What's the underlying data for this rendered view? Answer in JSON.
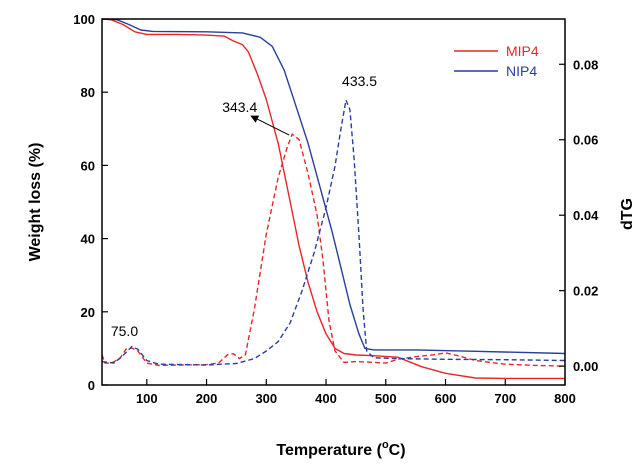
{
  "chart_data": {
    "type": "line",
    "title": "",
    "xlabel": "Temperature (",
    "xlabel_sup": "o",
    "xlabel_suffix": "C)",
    "ylabel": "Weight loss (%)",
    "y2label": "dTG",
    "xlim": [
      25,
      800
    ],
    "ylim": [
      0,
      100
    ],
    "y2lim": [
      -0.005,
      0.092
    ],
    "x_ticks": [
      100,
      200,
      300,
      400,
      500,
      600,
      700,
      800
    ],
    "y_ticks": [
      0,
      20,
      40,
      60,
      80,
      100
    ],
    "y2_ticks": [
      0.0,
      0.02,
      0.04,
      0.06,
      0.08
    ],
    "y2_tick_labels": [
      "0.00",
      "0.02",
      "0.04",
      "0.06",
      "0.08"
    ],
    "grid": false,
    "legend_position": "top-right",
    "colors": {
      "MIP4": "#e8262a",
      "NIP4": "#2a3f9a",
      "axis": "#000000"
    },
    "series": [
      {
        "name": "MIP4",
        "axis": "left",
        "style": "solid",
        "points": [
          [
            25,
            100
          ],
          [
            40,
            99.8
          ],
          [
            60,
            98.5
          ],
          [
            80,
            96.5
          ],
          [
            100,
            95.8
          ],
          [
            150,
            95.8
          ],
          [
            200,
            95.6
          ],
          [
            230,
            95.3
          ],
          [
            245,
            94
          ],
          [
            260,
            93
          ],
          [
            270,
            91
          ],
          [
            285,
            85
          ],
          [
            300,
            78
          ],
          [
            320,
            66
          ],
          [
            340,
            50
          ],
          [
            355,
            38
          ],
          [
            370,
            28
          ],
          [
            385,
            20
          ],
          [
            400,
            14
          ],
          [
            415,
            10
          ],
          [
            430,
            8.6
          ],
          [
            450,
            8.2
          ],
          [
            480,
            8
          ],
          [
            520,
            7.6
          ],
          [
            560,
            5
          ],
          [
            600,
            3.2
          ],
          [
            650,
            1.9
          ],
          [
            700,
            1.8
          ],
          [
            800,
            1.8
          ]
        ]
      },
      {
        "name": "NIP4",
        "axis": "left",
        "style": "solid",
        "points": [
          [
            25,
            100
          ],
          [
            50,
            99.8
          ],
          [
            70,
            98.5
          ],
          [
            90,
            97
          ],
          [
            110,
            96.6
          ],
          [
            200,
            96.5
          ],
          [
            260,
            96.2
          ],
          [
            290,
            95
          ],
          [
            310,
            92.5
          ],
          [
            330,
            86
          ],
          [
            350,
            76
          ],
          [
            370,
            66
          ],
          [
            390,
            54
          ],
          [
            410,
            42
          ],
          [
            425,
            32
          ],
          [
            440,
            22
          ],
          [
            455,
            14
          ],
          [
            465,
            10
          ],
          [
            480,
            9.6
          ],
          [
            550,
            9.6
          ],
          [
            650,
            9.2
          ],
          [
            800,
            8.6
          ]
        ]
      },
      {
        "name": "MIP4",
        "axis": "right",
        "style": "dashed",
        "points": [
          [
            25,
            0.003
          ],
          [
            30,
            0.0008
          ],
          [
            40,
            0.0008
          ],
          [
            55,
            0.002
          ],
          [
            65,
            0.0045
          ],
          [
            75,
            0.0048
          ],
          [
            85,
            0.004
          ],
          [
            100,
            0.0008
          ],
          [
            120,
            0.0002
          ],
          [
            160,
            0.0003
          ],
          [
            200,
            0.0004
          ],
          [
            220,
            0.0008
          ],
          [
            235,
            0.003
          ],
          [
            245,
            0.0033
          ],
          [
            255,
            0.002
          ],
          [
            265,
            0.003
          ],
          [
            280,
            0.015
          ],
          [
            300,
            0.035
          ],
          [
            320,
            0.05
          ],
          [
            335,
            0.058
          ],
          [
            343.4,
            0.0615
          ],
          [
            355,
            0.06
          ],
          [
            370,
            0.051
          ],
          [
            385,
            0.04
          ],
          [
            395,
            0.028
          ],
          [
            405,
            0.012
          ],
          [
            415,
            0.004
          ],
          [
            430,
            0.001
          ],
          [
            450,
            0.0012
          ],
          [
            480,
            0.001
          ],
          [
            500,
            0.0008
          ],
          [
            520,
            0.0018
          ],
          [
            550,
            0.0025
          ],
          [
            580,
            0.003
          ],
          [
            600,
            0.0035
          ],
          [
            620,
            0.0028
          ],
          [
            650,
            0.0015
          ],
          [
            700,
            0.0005
          ],
          [
            750,
            0.0002
          ],
          [
            800,
            0
          ]
        ]
      },
      {
        "name": "NIP4",
        "axis": "right",
        "style": "dashed",
        "points": [
          [
            25,
            0.0012
          ],
          [
            45,
            0.0008
          ],
          [
            60,
            0.0028
          ],
          [
            75,
            0.0052
          ],
          [
            85,
            0.0045
          ],
          [
            100,
            0.0015
          ],
          [
            120,
            0.0005
          ],
          [
            200,
            0.0003
          ],
          [
            250,
            0.0007
          ],
          [
            280,
            0.002
          ],
          [
            300,
            0.004
          ],
          [
            320,
            0.0065
          ],
          [
            340,
            0.0115
          ],
          [
            360,
            0.02
          ],
          [
            380,
            0.03
          ],
          [
            400,
            0.042
          ],
          [
            415,
            0.053
          ],
          [
            425,
            0.063
          ],
          [
            433.5,
            0.0705
          ],
          [
            440,
            0.068
          ],
          [
            447,
            0.055
          ],
          [
            455,
            0.035
          ],
          [
            462,
            0.015
          ],
          [
            468,
            0.004
          ],
          [
            480,
            0.0022
          ],
          [
            520,
            0.002
          ],
          [
            600,
            0.0018
          ],
          [
            700,
            0.0017
          ],
          [
            800,
            0.0015
          ]
        ]
      }
    ],
    "annotations": [
      {
        "text": "75.0",
        "x": 75,
        "y": 0.0048,
        "axis": "right"
      },
      {
        "text": "343.4",
        "x": 343.4,
        "y": 0.0615,
        "axis": "right",
        "arrow": true
      },
      {
        "text": "433.5",
        "x": 433.5,
        "y": 0.0705,
        "axis": "right"
      }
    ]
  }
}
